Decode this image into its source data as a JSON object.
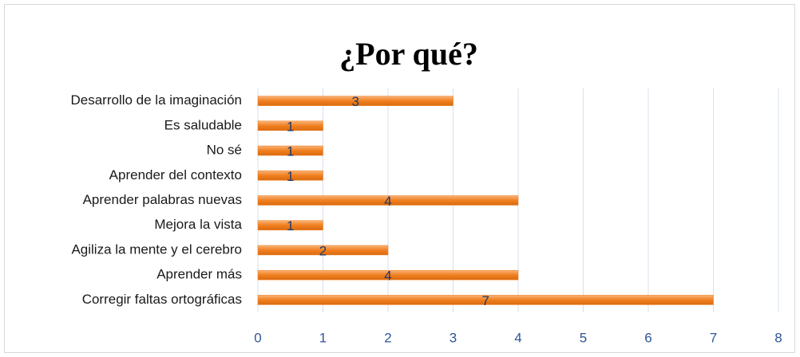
{
  "chart_data": {
    "type": "bar",
    "orientation": "horizontal",
    "title": "¿Por qué?",
    "categories": [
      "Desarrollo de la imaginación",
      "Es saludable",
      "No sé",
      "Aprender del contexto",
      "Aprender palabras nuevas",
      "Mejora la vista",
      "Agiliza la mente y el cerebro",
      "Aprender más",
      "Corregir faltas ortográficas"
    ],
    "values": [
      3,
      1,
      1,
      1,
      4,
      1,
      2,
      4,
      7
    ],
    "color": "#f07f1f",
    "xlim": [
      0,
      8
    ],
    "xticks": [
      0,
      1,
      2,
      3,
      4,
      5,
      6,
      7,
      8
    ],
    "grid": true
  }
}
